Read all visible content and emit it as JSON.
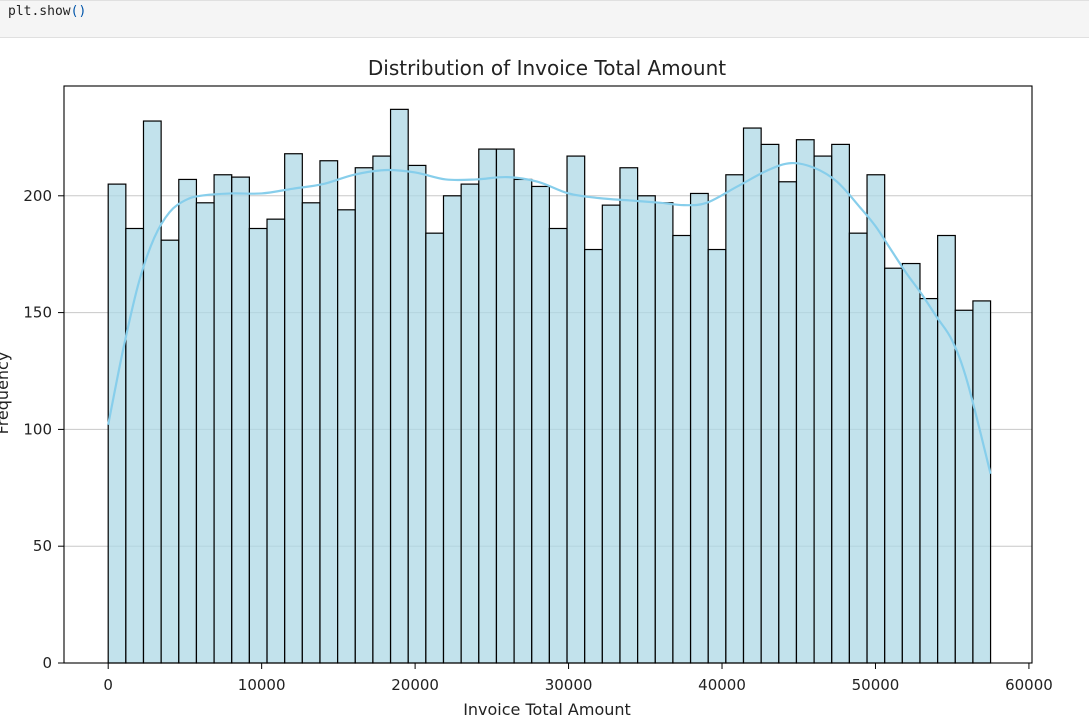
{
  "code_cell": {
    "code_object": "plt.show",
    "code_parens": "()"
  },
  "chart_data": {
    "type": "bar",
    "title": "Distribution of Invoice Total Amount",
    "xlabel": "Invoice Total Amount",
    "ylabel": "Frequency",
    "xlim": [
      -2880,
      60200
    ],
    "ylim": [
      0,
      247
    ],
    "xticks": [
      0,
      10000,
      20000,
      30000,
      40000,
      50000,
      60000
    ],
    "yticks": [
      0,
      50,
      100,
      150,
      200
    ],
    "grid": "horizontal",
    "bar_color": "#add8e6",
    "bar_edge_color": "#000000",
    "kde_color": "#87ceeb",
    "bins": {
      "start": 0,
      "width": 1150,
      "counts": [
        205,
        186,
        232,
        181,
        207,
        197,
        209,
        208,
        186,
        190,
        218,
        197,
        215,
        194,
        212,
        217,
        237,
        213,
        184,
        200,
        205,
        220,
        220,
        207,
        204,
        186,
        217,
        177,
        196,
        212,
        200,
        197,
        183,
        201,
        177,
        209,
        229,
        222,
        206,
        224,
        217,
        222,
        184,
        209,
        169,
        171,
        156,
        183,
        151,
        155
      ]
    },
    "kde": {
      "x": [
        0,
        1000,
        2000,
        3000,
        4000,
        5000,
        6000,
        8000,
        10000,
        12000,
        14000,
        16000,
        18000,
        20000,
        22000,
        24000,
        26000,
        28000,
        30000,
        32000,
        34000,
        36000,
        37500,
        39000,
        41000,
        43000,
        44500,
        46000,
        47500,
        49000,
        50000,
        51000,
        52000,
        53000,
        54000,
        55000,
        56000,
        57500
      ],
      "y": [
        102,
        135,
        163,
        182,
        193,
        198,
        200,
        201,
        201,
        203,
        205,
        209,
        211,
        210,
        207,
        207,
        208,
        206,
        201,
        199,
        198,
        197,
        196,
        197,
        204,
        211,
        214,
        212,
        206,
        195,
        187,
        177,
        167,
        158,
        148,
        138,
        120,
        81
      ]
    }
  }
}
